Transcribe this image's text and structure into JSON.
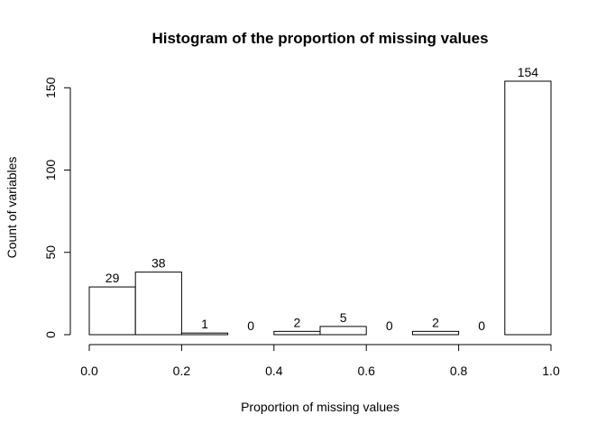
{
  "chart_data": {
    "type": "bar",
    "title": "Histogram of the proportion of missing values",
    "xlabel": "Proportion of missing values",
    "ylabel": "Count of variables",
    "bins": [
      {
        "from": 0.0,
        "to": 0.1,
        "count": 29,
        "label": "29"
      },
      {
        "from": 0.1,
        "to": 0.2,
        "count": 38,
        "label": "38"
      },
      {
        "from": 0.2,
        "to": 0.3,
        "count": 1,
        "label": "1"
      },
      {
        "from": 0.3,
        "to": 0.4,
        "count": 0,
        "label": "0"
      },
      {
        "from": 0.4,
        "to": 0.5,
        "count": 2,
        "label": "2"
      },
      {
        "from": 0.5,
        "to": 0.6,
        "count": 5,
        "label": "5"
      },
      {
        "from": 0.6,
        "to": 0.7,
        "count": 0,
        "label": "0"
      },
      {
        "from": 0.7,
        "to": 0.8,
        "count": 2,
        "label": "2"
      },
      {
        "from": 0.8,
        "to": 0.9,
        "count": 0,
        "label": "0"
      },
      {
        "from": 0.9,
        "to": 1.0,
        "count": 154,
        "label": "154"
      }
    ],
    "xlim": [
      0,
      1
    ],
    "ylim": [
      0,
      154
    ],
    "xticks": [
      {
        "value": 0.0,
        "label": "0.0"
      },
      {
        "value": 0.2,
        "label": "0.2"
      },
      {
        "value": 0.4,
        "label": "0.4"
      },
      {
        "value": 0.6,
        "label": "0.6"
      },
      {
        "value": 0.8,
        "label": "0.8"
      },
      {
        "value": 1.0,
        "label": "1.0"
      }
    ],
    "yticks": [
      {
        "value": 0,
        "label": "0"
      },
      {
        "value": 50,
        "label": "50"
      },
      {
        "value": 100,
        "label": "100"
      },
      {
        "value": 150,
        "label": "150"
      }
    ],
    "grid": false,
    "bar_fill": "#ffffff",
    "bar_stroke": "#000000"
  }
}
